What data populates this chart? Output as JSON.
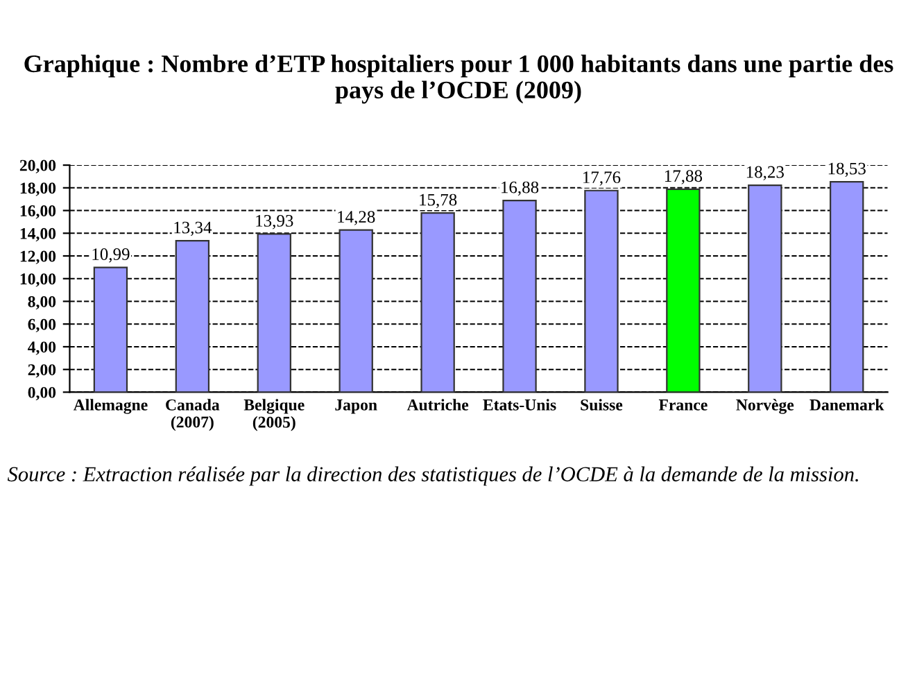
{
  "chart_data": {
    "type": "bar",
    "title": "Graphique : Nombre d’ETP hospitaliers pour 1 000 habitants dans une partie des pays de l’OCDE (2009)",
    "categories": [
      "Allemagne",
      "Canada\n(2007)",
      "Belgique\n(2005)",
      "Japon",
      "Autriche",
      "Etats-Unis",
      "Suisse",
      "France",
      "Norvège",
      "Danemark"
    ],
    "values": [
      10.99,
      13.34,
      13.93,
      14.28,
      15.78,
      16.88,
      17.76,
      17.88,
      18.23,
      18.53
    ],
    "colors": [
      "#9999ff",
      "#9999ff",
      "#9999ff",
      "#9999ff",
      "#9999ff",
      "#9999ff",
      "#9999ff",
      "#00ff00",
      "#9999ff",
      "#9999ff"
    ],
    "value_labels": [
      "10,99",
      "13,34",
      "13,93",
      "14,28",
      "15,78",
      "16,88",
      "17,76",
      "17,88",
      "18,23",
      "18,53"
    ],
    "ylim": [
      0,
      20
    ],
    "yticks": [
      {
        "value": 0,
        "label": "0,00"
      },
      {
        "value": 2,
        "label": "2,00"
      },
      {
        "value": 4,
        "label": "4,00"
      },
      {
        "value": 6,
        "label": "6,00"
      },
      {
        "value": 8,
        "label": "8,00"
      },
      {
        "value": 10,
        "label": "10,00"
      },
      {
        "value": 12,
        "label": "12,00"
      },
      {
        "value": 14,
        "label": "14,00"
      },
      {
        "value": 16,
        "label": "16,00"
      },
      {
        "value": 18,
        "label": "18,00"
      },
      {
        "value": 20,
        "label": "20,00"
      }
    ],
    "grid": "y",
    "annotations": [
      "Source : Extraction réalisée par la direction des statistiques de l’OCDE à la demande de la mission."
    ]
  }
}
